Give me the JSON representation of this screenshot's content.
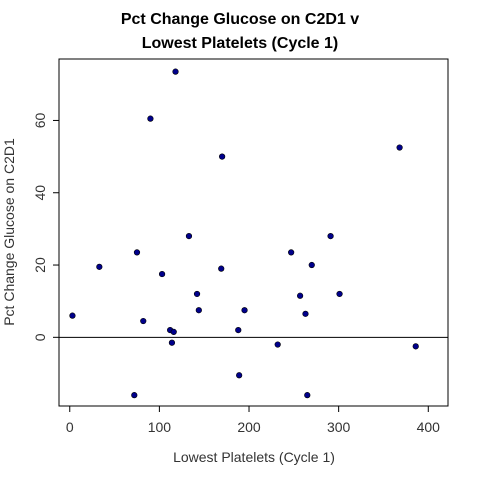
{
  "chart_data": {
    "type": "scatter",
    "title_lines": [
      "Pct Change Glucose on C2D1 v",
      "Lowest Platelets (Cycle 1)"
    ],
    "xlabel": "Lowest Platelets (Cycle 1)",
    "ylabel": "Pct Change Glucose on C2D1",
    "xlim": [
      -12,
      422
    ],
    "ylim": [
      -19,
      77
    ],
    "xticks": [
      0,
      100,
      200,
      300,
      400
    ],
    "yticks": [
      0,
      20,
      40,
      60
    ],
    "grid": false,
    "reference_line_y": 0,
    "marker_color": "#00008B",
    "points": [
      {
        "x": 3,
        "y": 6
      },
      {
        "x": 33,
        "y": 19.5
      },
      {
        "x": 72,
        "y": -16
      },
      {
        "x": 75,
        "y": 23.5
      },
      {
        "x": 82,
        "y": 4.5
      },
      {
        "x": 90,
        "y": 60.5
      },
      {
        "x": 103,
        "y": 17.5
      },
      {
        "x": 112,
        "y": 2
      },
      {
        "x": 114,
        "y": -1.5
      },
      {
        "x": 116,
        "y": 1.5
      },
      {
        "x": 118,
        "y": 73.5
      },
      {
        "x": 133,
        "y": 28
      },
      {
        "x": 142,
        "y": 12
      },
      {
        "x": 144,
        "y": 7.5
      },
      {
        "x": 169,
        "y": 19
      },
      {
        "x": 170,
        "y": 50
      },
      {
        "x": 188,
        "y": 2
      },
      {
        "x": 189,
        "y": -10.5
      },
      {
        "x": 195,
        "y": 7.5
      },
      {
        "x": 232,
        "y": -2
      },
      {
        "x": 247,
        "y": 23.5
      },
      {
        "x": 257,
        "y": 11.5
      },
      {
        "x": 263,
        "y": 6.5
      },
      {
        "x": 265,
        "y": -16
      },
      {
        "x": 270,
        "y": 20
      },
      {
        "x": 291,
        "y": 28
      },
      {
        "x": 301,
        "y": 12
      },
      {
        "x": 368,
        "y": 52.5
      },
      {
        "x": 386,
        "y": -2.5
      }
    ]
  }
}
